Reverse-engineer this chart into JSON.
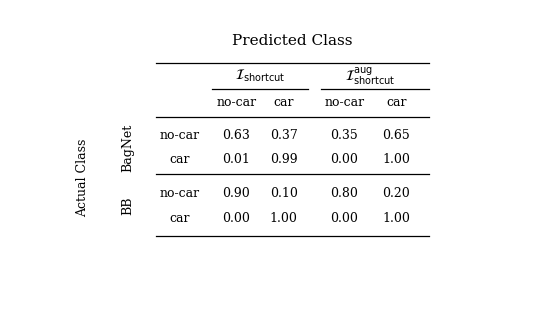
{
  "title": "Predicted Class",
  "ylabel": "Actual Class",
  "col_group1_label": "$\\mathcal{I}_{\\mathrm{shortcut}}$",
  "col_group2_label": "$\\mathcal{I}_{\\mathrm{shortcut}}^{\\mathrm{aug}}$",
  "sub_col_labels": [
    "no-car",
    "car",
    "no-car",
    "car"
  ],
  "row_groups": [
    {
      "group_label": "BagNet",
      "rows": [
        {
          "label": "no-car",
          "values": [
            "0.63",
            "0.37",
            "0.35",
            "0.65"
          ]
        },
        {
          "label": "car",
          "values": [
            "0.01",
            "0.99",
            "0.00",
            "1.00"
          ]
        }
      ]
    },
    {
      "group_label": "BB",
      "rows": [
        {
          "label": "no-car",
          "values": [
            "0.90",
            "0.10",
            "0.80",
            "0.20"
          ]
        },
        {
          "label": "car",
          "values": [
            "0.00",
            "1.00",
            "0.00",
            "1.00"
          ]
        }
      ]
    }
  ],
  "bg_color": "#ffffff",
  "text_color": "#000000",
  "line_color": "#000000",
  "fontsize_title": 11,
  "fontsize_header": 9,
  "fontsize_cell": 9,
  "fontsize_group": 9,
  "fontsize_ylabel": 9
}
